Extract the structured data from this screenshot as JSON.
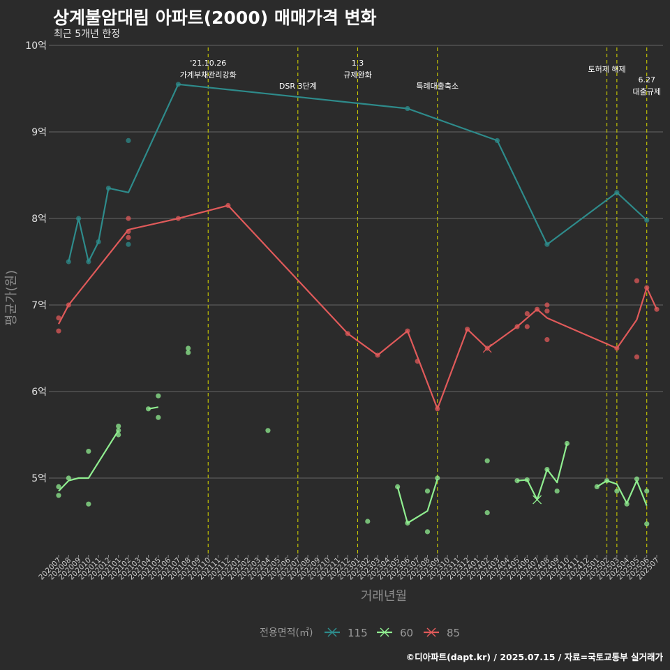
{
  "title": "상계불암대림 아파트(2000) 매매가격 변화",
  "subtitle": "최근 5개년 한정",
  "caption": "©디아파트(dapt.kr) / 2025.07.15 / 자료=국토교통부 실거래가",
  "colors": {
    "115": "#2e8b8b",
    "60": "#90ee90",
    "85": "#e05a5a",
    "vline": "#cccc00",
    "grid": "#666666"
  },
  "chart_data": {
    "type": "line",
    "title": "상계불암대림 아파트(2000) 매매가격 변화",
    "subtitle": "최근 5개년 한정",
    "xlabel": "거래년월",
    "ylabel": "평균가(원)",
    "ylim": [
      4.2,
      10.0
    ],
    "y_ticks": [
      5,
      6,
      7,
      8,
      9,
      10
    ],
    "y_tick_labels": [
      "5억",
      "6억",
      "7억",
      "8억",
      "9억",
      "10억"
    ],
    "x_categories": [
      "202007",
      "202008",
      "202009",
      "202010",
      "202011",
      "202012",
      "202101",
      "202102",
      "202103",
      "202104",
      "202105",
      "202106",
      "202107",
      "202108",
      "202109",
      "202110",
      "202111",
      "202112",
      "202201",
      "202202",
      "202203",
      "202204",
      "202205",
      "202206",
      "202207",
      "202208",
      "202209",
      "202210",
      "202211",
      "202212",
      "202301",
      "202302",
      "202303",
      "202304",
      "202305",
      "202306",
      "202307",
      "202308",
      "202309",
      "202310",
      "202311",
      "202312",
      "202401",
      "202402",
      "202403",
      "202404",
      "202405",
      "202406",
      "202407",
      "202408",
      "202409",
      "202410",
      "202411",
      "202412",
      "202501",
      "202502",
      "202503",
      "202504",
      "202505",
      "202506",
      "202507"
    ],
    "legend_title": "전용면적(㎡)",
    "legend_position": "bottom",
    "series": [
      {
        "name": "115",
        "color": "#2e8b8b",
        "line": [
          [
            "202008",
            7.5
          ],
          [
            "202009",
            8.0
          ],
          [
            "202010",
            7.5
          ],
          [
            "202011",
            7.73
          ],
          [
            "202012",
            8.35
          ],
          [
            "202102",
            8.3
          ],
          [
            "202107",
            9.55
          ],
          [
            "202306",
            9.27
          ],
          [
            "202403",
            8.9
          ],
          [
            "202408",
            7.7
          ],
          [
            "202503",
            8.3
          ],
          [
            "202506",
            7.98
          ]
        ],
        "points": [
          [
            "202008",
            7.5
          ],
          [
            "202009",
            8.0
          ],
          [
            "202010",
            7.5
          ],
          [
            "202011",
            7.73
          ],
          [
            "202012",
            8.35
          ],
          [
            "202102",
            8.9
          ],
          [
            "202102",
            7.7
          ],
          [
            "202107",
            9.55
          ],
          [
            "202306",
            9.27
          ],
          [
            "202403",
            8.9
          ],
          [
            "202408",
            7.7
          ],
          [
            "202503",
            8.3
          ],
          [
            "202506",
            7.98
          ]
        ]
      },
      {
        "name": "60",
        "color": "#90ee90",
        "line_segments": [
          [
            [
              "202007",
              4.85
            ],
            [
              "202008",
              4.97
            ],
            [
              "202009",
              5.0
            ],
            [
              "202010",
              5.0
            ],
            [
              "202101",
              5.55
            ]
          ],
          [
            [
              "202104",
              5.8
            ],
            [
              "202105",
              5.82
            ]
          ],
          [
            [
              "202305",
              4.9
            ],
            [
              "202306",
              4.48
            ],
            [
              "202308",
              4.62
            ],
            [
              "202309",
              4.99
            ]
          ],
          [
            [
              "202405",
              4.97
            ],
            [
              "202406",
              4.98
            ],
            [
              "202407",
              4.75
            ],
            [
              "202408",
              5.1
            ],
            [
              "202409",
              4.95
            ],
            [
              "202410",
              5.4
            ]
          ],
          [
            [
              "202501",
              4.9
            ],
            [
              "202502",
              4.97
            ],
            [
              "202503",
              4.93
            ],
            [
              "202504",
              4.71
            ],
            [
              "202505",
              4.97
            ],
            [
              "202506",
              4.68
            ]
          ]
        ],
        "points": [
          [
            "202007",
            4.9
          ],
          [
            "202007",
            4.8
          ],
          [
            "202008",
            5.0
          ],
          [
            "202010",
            5.31
          ],
          [
            "202010",
            4.7
          ],
          [
            "202101",
            5.6
          ],
          [
            "202101",
            5.55
          ],
          [
            "202101",
            5.5
          ],
          [
            "202104",
            5.8
          ],
          [
            "202105",
            5.95
          ],
          [
            "202105",
            5.7
          ],
          [
            "202108",
            6.5
          ],
          [
            "202108",
            6.45
          ],
          [
            "202204",
            5.55
          ],
          [
            "202302",
            4.5
          ],
          [
            "202305",
            4.9
          ],
          [
            "202306",
            4.48
          ],
          [
            "202308",
            4.85
          ],
          [
            "202308",
            4.38
          ],
          [
            "202309",
            5.0
          ],
          [
            "202402",
            5.2
          ],
          [
            "202402",
            4.6
          ],
          [
            "202405",
            4.97
          ],
          [
            "202406",
            4.98
          ],
          [
            "202408",
            5.1
          ],
          [
            "202409",
            4.85
          ],
          [
            "202410",
            5.4
          ],
          [
            "202501",
            4.9
          ],
          [
            "202502",
            4.97
          ],
          [
            "202503",
            4.85
          ],
          [
            "202504",
            4.7
          ],
          [
            "202505",
            4.99
          ],
          [
            "202506",
            4.85
          ],
          [
            "202506",
            4.47
          ]
        ]
      },
      {
        "name": "85",
        "color": "#e05a5a",
        "line": [
          [
            "202007",
            6.78
          ],
          [
            "202008",
            7.0
          ],
          [
            "202102",
            7.87
          ],
          [
            "202107",
            8.0
          ],
          [
            "202112",
            8.15
          ],
          [
            "202212",
            6.67
          ],
          [
            "202303",
            6.42
          ],
          [
            "202306",
            6.7
          ],
          [
            "202309",
            5.8
          ],
          [
            "202312",
            6.72
          ],
          [
            "202402",
            6.5
          ],
          [
            "202405",
            6.75
          ],
          [
            "202407",
            6.95
          ],
          [
            "202408",
            6.85
          ],
          [
            "202503",
            6.5
          ],
          [
            "202505",
            6.83
          ],
          [
            "202506",
            7.2
          ],
          [
            "202507",
            6.95
          ]
        ],
        "points": [
          [
            "202007",
            6.85
          ],
          [
            "202007",
            6.7
          ],
          [
            "202008",
            7.0
          ],
          [
            "202102",
            8.0
          ],
          [
            "202102",
            7.85
          ],
          [
            "202102",
            7.78
          ],
          [
            "202107",
            8.0
          ],
          [
            "202112",
            8.15
          ],
          [
            "202212",
            6.67
          ],
          [
            "202303",
            6.42
          ],
          [
            "202306",
            6.7
          ],
          [
            "202307",
            6.35
          ],
          [
            "202309",
            5.8
          ],
          [
            "202312",
            6.72
          ],
          [
            "202402",
            6.5
          ],
          [
            "202405",
            6.75
          ],
          [
            "202406",
            6.9
          ],
          [
            "202406",
            6.75
          ],
          [
            "202407",
            6.95
          ],
          [
            "202408",
            7.0
          ],
          [
            "202408",
            6.93
          ],
          [
            "202408",
            6.6
          ],
          [
            "202503",
            6.5
          ],
          [
            "202505",
            7.28
          ],
          [
            "202505",
            6.4
          ],
          [
            "202506",
            7.2
          ],
          [
            "202507",
            6.95
          ]
        ]
      }
    ],
    "vlines": [
      {
        "x": "202110",
        "label_lines": [
          "'21.10.26",
          "가계부채관리강화"
        ]
      },
      {
        "x": "202207",
        "label_lines": [
          "DSR 3단계"
        ]
      },
      {
        "x": "202301",
        "label_lines": [
          "1.3",
          "규제완화"
        ]
      },
      {
        "x": "202309",
        "label_lines": [
          "특례대출축소"
        ]
      },
      {
        "x": "202502",
        "label_lines": [
          "토허제 해제"
        ]
      },
      {
        "x": "202503",
        "label_lines": []
      },
      {
        "x": "202506",
        "label_lines": [
          "6.27",
          "대출규제"
        ]
      }
    ]
  }
}
